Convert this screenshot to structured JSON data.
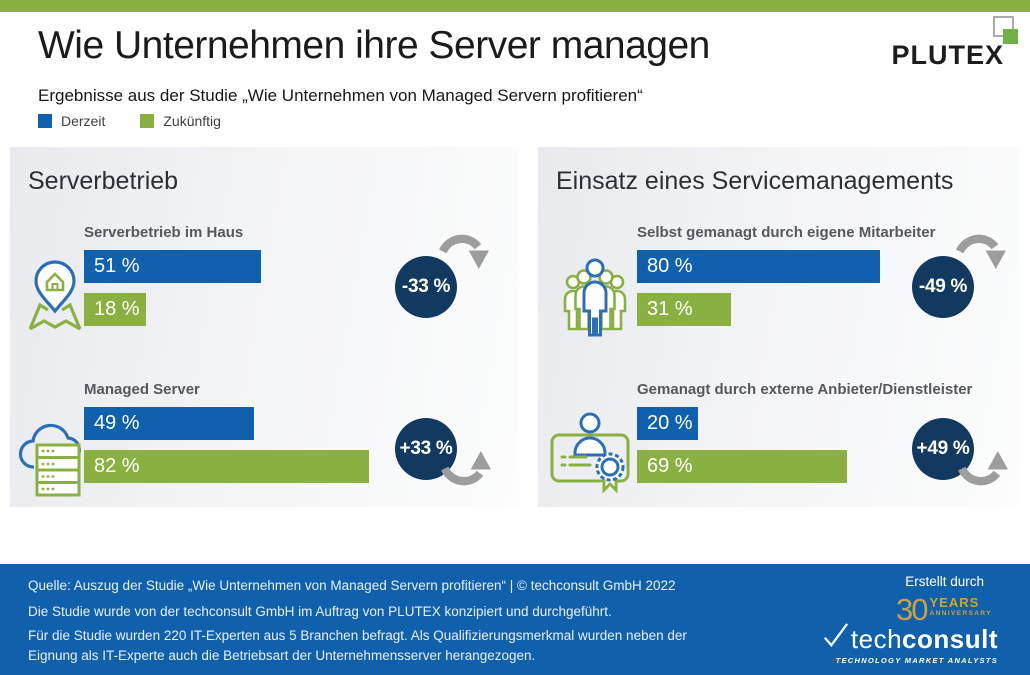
{
  "page": {
    "title": "Wie Unternehmen ihre Server managen",
    "subtitle": "Ergebnisse aus der Studie „Wie Unternehmen von Managed Servern profitieren“",
    "brand": "PLUTEX"
  },
  "legend": {
    "current": "Derzeit",
    "future": "Zukünftig"
  },
  "colors": {
    "accent_green": "#8bb042",
    "accent_blue": "#1061ad",
    "navy_circle": "#123a61",
    "arrow_gray": "#9d9d9d",
    "footer_blue": "#1060ac"
  },
  "chart_data": {
    "type": "bar",
    "orientation": "horizontal",
    "unit": "%",
    "series_names": [
      "Derzeit",
      "Zukünftig"
    ],
    "xlim": [
      0,
      100
    ],
    "panels": [
      {
        "title": "Serverbetrieb",
        "groups": [
          {
            "label": "Serverbetrieb im Haus",
            "icon": "map-pin-house-icon",
            "current": 51,
            "current_display": "51 %",
            "future": 18,
            "future_display": "18 %",
            "change": "-33 %",
            "direction": "down"
          },
          {
            "label": "Managed Server",
            "icon": "cloud-server-icon",
            "current": 49,
            "current_display": "49 %",
            "future": 82,
            "future_display": "82 %",
            "change": "+33 %",
            "direction": "up"
          }
        ]
      },
      {
        "title": "Einsatz eines Servicemanagements",
        "groups": [
          {
            "label": "Selbst gemanagt durch eigene Mitarbeiter",
            "icon": "people-group-icon",
            "current": 80,
            "current_display": "80 %",
            "future": 31,
            "future_display": "31 %",
            "change": "-49 %",
            "direction": "down"
          },
          {
            "label": "Gemanagt durch externe Anbieter/Dienstleister",
            "icon": "id-card-certificate-icon",
            "current": 20,
            "current_display": "20 %",
            "future": 69,
            "future_display": "69 %",
            "change": "+49 %",
            "direction": "up"
          }
        ]
      }
    ]
  },
  "footer": {
    "line1": "Quelle: Auszug der Studie „Wie Unternehmen von Managed Servern profitieren“ | © techconsult GmbH 2022",
    "line2": "Die Studie wurde von der techconsult GmbH im Auftrag von PLUTEX konzipiert und durchgeführt.",
    "line3": "Für die Studie wurden 220 IT-Experten aus 5 Branchen befragt. Als Qualifizierungsmerkmal wurden neben der Eignung als IT-Experte auch die Betriebsart der Unternehmensserver herangezogen.",
    "credit_label": "Erstellt durch",
    "anniversary": {
      "number": "30",
      "years": "YEARS",
      "anniversary": "ANNIVERSARY"
    },
    "techconsult": {
      "tech": "tech",
      "consult": "consult",
      "tagline": "TECHNOLOGY MARKET ANALYSTS"
    }
  }
}
